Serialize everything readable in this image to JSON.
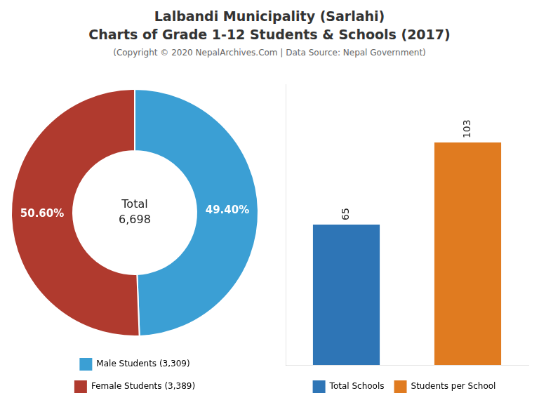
{
  "title": [
    "Lalbandi Municipality (Sarlahi)",
    "Charts of Grade 1-12 Students & Schools (2017)"
  ],
  "subtitle": "(Copyright © 2020 NepalArchives.Com | Data Source: Nepal Government)",
  "chart_data": [
    {
      "type": "doughnut",
      "categories": [
        "Male Students (3,309)",
        "Female Students (3,389)"
      ],
      "values": [
        49.4,
        50.6
      ],
      "value_labels": [
        "49.40%",
        "50.60%"
      ],
      "colors": [
        "#3b9fd4",
        "#b03a2e"
      ],
      "data_labels": true,
      "annotations": [
        "Total",
        "6,698"
      ],
      "legend": "bottom"
    },
    {
      "type": "bar",
      "categories": [
        "Total Schools",
        "Students per School"
      ],
      "values": [
        65,
        103
      ],
      "colors": [
        "#2e75b6",
        "#e07b20"
      ],
      "ylim": [
        0,
        130
      ],
      "data_labels": true,
      "tick_labels": false,
      "grid": false,
      "legend": "bottom"
    }
  ]
}
